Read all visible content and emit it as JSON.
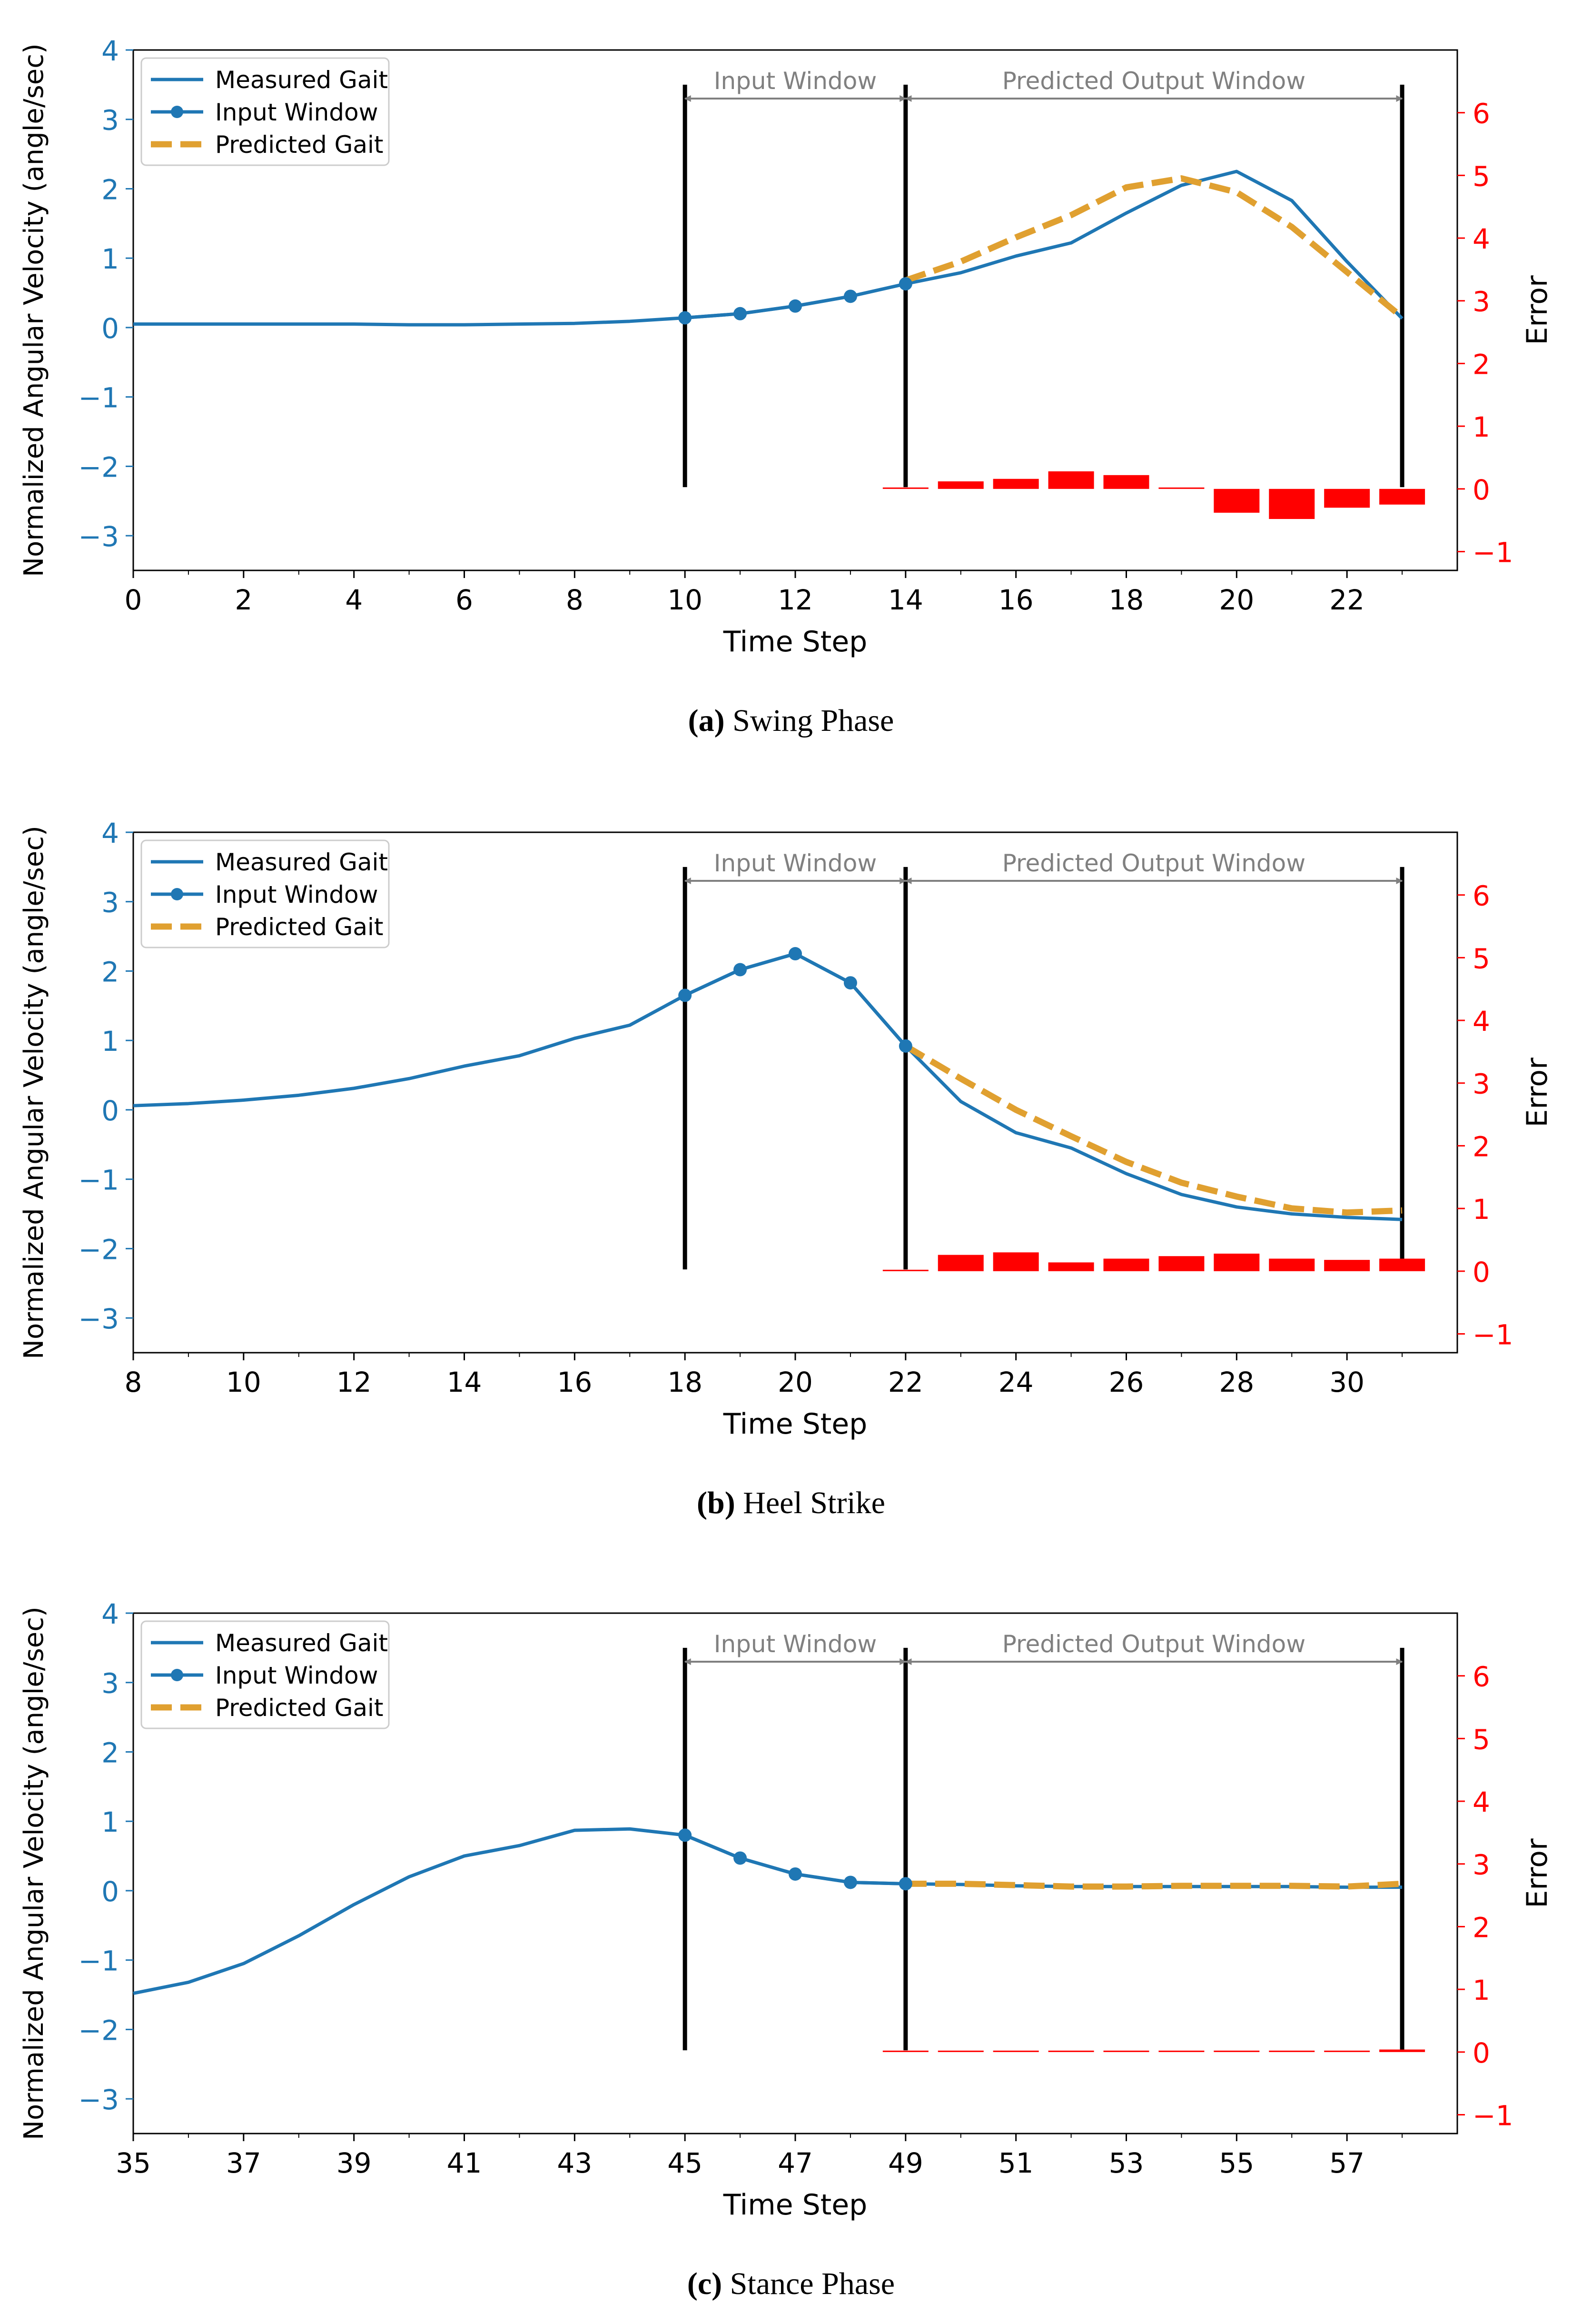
{
  "chart_data": [
    {
      "type": "line",
      "panel_label": "(a)",
      "caption": "Swing Phase",
      "xlabel": "Time Step",
      "ylabel": "Normalized Angular Velocity (angle/sec)",
      "y2label": "Error",
      "xlim": [
        0,
        24
      ],
      "ylim": [
        -3.5,
        4
      ],
      "y2lim": [
        -1.3,
        7
      ],
      "xticks": [
        "0",
        "2",
        "4",
        "6",
        "8",
        "10",
        "12",
        "14",
        "16",
        "18",
        "20",
        "22"
      ],
      "yticks": [
        "−3",
        "−2",
        "−1",
        "0",
        "1",
        "2",
        "3",
        "4"
      ],
      "y2ticks": [
        "−1",
        "0",
        "1",
        "2",
        "3",
        "4",
        "5",
        "6"
      ],
      "legend": {
        "placement": "top-left",
        "entries": [
          "Measured Gait",
          "Input Window",
          "Predicted Gait"
        ]
      },
      "series": [
        {
          "name": "Measured Gait",
          "color": "#1f77b4",
          "x": [
            0,
            1,
            2,
            3,
            4,
            5,
            6,
            7,
            8,
            9,
            10,
            11,
            12,
            13,
            14,
            15,
            16,
            17,
            18,
            19,
            20,
            21,
            22,
            23
          ],
          "y": [
            0.05,
            0.05,
            0.05,
            0.05,
            0.05,
            0.04,
            0.04,
            0.05,
            0.06,
            0.09,
            0.14,
            0.2,
            0.31,
            0.45,
            0.63,
            0.79,
            1.03,
            1.22,
            1.65,
            2.05,
            2.25,
            1.83,
            0.95,
            0.13
          ]
        },
        {
          "name": "Input Window",
          "color": "#1f77b4",
          "x": [
            10,
            11,
            12,
            13,
            14
          ],
          "y": [
            0.14,
            0.2,
            0.31,
            0.45,
            0.63
          ]
        },
        {
          "name": "Predicted Gait",
          "color": "#e0a030",
          "x": [
            14,
            15,
            16,
            17,
            18,
            19,
            20,
            21,
            22,
            23
          ],
          "y": [
            0.68,
            0.95,
            1.3,
            1.62,
            2.02,
            2.15,
            1.95,
            1.45,
            0.8,
            0.15
          ]
        }
      ],
      "error_bars": {
        "color": "#ff0000",
        "x": [
          14,
          15,
          16,
          17,
          18,
          19,
          20,
          21,
          22,
          23
        ],
        "y": [
          0.0,
          0.12,
          0.16,
          0.28,
          0.22,
          0.02,
          -0.38,
          -0.48,
          -0.3,
          -0.25
        ]
      },
      "windows": {
        "input": {
          "label": "Input Window",
          "start": 10,
          "end": 14
        },
        "output": {
          "label": "Predicted Output Window",
          "start": 14,
          "end": 23
        }
      }
    },
    {
      "type": "line",
      "panel_label": "(b)",
      "caption": "Heel Strike",
      "xlabel": "Time Step",
      "ylabel": "Normalized Angular Velocity (angle/sec)",
      "y2label": "Error",
      "xlim": [
        8,
        32
      ],
      "ylim": [
        -3.5,
        4
      ],
      "y2lim": [
        -1.3,
        7
      ],
      "xticks": [
        "8",
        "10",
        "12",
        "14",
        "16",
        "18",
        "20",
        "22",
        "24",
        "26",
        "28",
        "30"
      ],
      "yticks": [
        "−3",
        "−2",
        "−1",
        "0",
        "1",
        "2",
        "3",
        "4"
      ],
      "y2ticks": [
        "−1",
        "0",
        "1",
        "2",
        "3",
        "4",
        "5",
        "6"
      ],
      "legend": {
        "placement": "top-left",
        "entries": [
          "Measured Gait",
          "Input Window",
          "Predicted Gait"
        ]
      },
      "series": [
        {
          "name": "Measured Gait",
          "color": "#1f77b4",
          "x": [
            8,
            9,
            10,
            11,
            12,
            13,
            14,
            15,
            16,
            17,
            18,
            19,
            20,
            21,
            22,
            23,
            24,
            25,
            26,
            27,
            28,
            29,
            30,
            31
          ],
          "y": [
            0.06,
            0.09,
            0.14,
            0.21,
            0.31,
            0.45,
            0.63,
            0.78,
            1.03,
            1.22,
            1.65,
            2.02,
            2.25,
            1.83,
            0.92,
            0.12,
            -0.33,
            -0.55,
            -0.92,
            -1.22,
            -1.4,
            -1.5,
            -1.55,
            -1.58
          ]
        },
        {
          "name": "Input Window",
          "color": "#1f77b4",
          "x": [
            18,
            19,
            20,
            21,
            22
          ],
          "y": [
            1.65,
            2.02,
            2.25,
            1.83,
            0.92
          ]
        },
        {
          "name": "Predicted Gait",
          "color": "#e0a030",
          "x": [
            22,
            23,
            24,
            25,
            26,
            27,
            28,
            29,
            30,
            31
          ],
          "y": [
            0.92,
            0.45,
            0.0,
            -0.38,
            -0.75,
            -1.05,
            -1.25,
            -1.42,
            -1.48,
            -1.45
          ]
        }
      ],
      "error_bars": {
        "color": "#ff0000",
        "x": [
          22,
          23,
          24,
          25,
          26,
          27,
          28,
          29,
          30,
          31
        ],
        "y": [
          0.0,
          0.26,
          0.3,
          0.14,
          0.2,
          0.24,
          0.28,
          0.2,
          0.18,
          0.2
        ]
      },
      "windows": {
        "input": {
          "label": "Input Window",
          "start": 18,
          "end": 22
        },
        "output": {
          "label": "Predicted Output Window",
          "start": 22,
          "end": 31
        }
      }
    },
    {
      "type": "line",
      "panel_label": "(c)",
      "caption": "Stance Phase",
      "xlabel": "Time Step",
      "ylabel": "Normalized Angular Velocity (angle/sec)",
      "y2label": "Error",
      "xlim": [
        35,
        59
      ],
      "ylim": [
        -3.5,
        4
      ],
      "y2lim": [
        -1.3,
        7
      ],
      "xticks": [
        "35",
        "37",
        "39",
        "41",
        "43",
        "45",
        "47",
        "49",
        "51",
        "53",
        "55",
        "57"
      ],
      "yticks": [
        "−3",
        "−2",
        "−1",
        "0",
        "1",
        "2",
        "3",
        "4"
      ],
      "y2ticks": [
        "−1",
        "0",
        "1",
        "2",
        "3",
        "4",
        "5",
        "6"
      ],
      "legend": {
        "placement": "top-left",
        "entries": [
          "Measured Gait",
          "Input Window",
          "Predicted Gait"
        ]
      },
      "series": [
        {
          "name": "Measured Gait",
          "color": "#1f77b4",
          "x": [
            35,
            36,
            37,
            38,
            39,
            40,
            41,
            42,
            43,
            44,
            45,
            46,
            47,
            48,
            49,
            50,
            51,
            52,
            53,
            54,
            55,
            56,
            57,
            58
          ],
          "y": [
            -1.48,
            -1.32,
            -1.05,
            -0.65,
            -0.2,
            0.2,
            0.5,
            0.65,
            0.87,
            0.89,
            0.8,
            0.47,
            0.24,
            0.12,
            0.1,
            0.09,
            0.07,
            0.06,
            0.06,
            0.06,
            0.06,
            0.06,
            0.05,
            0.05
          ]
        },
        {
          "name": "Input Window",
          "color": "#1f77b4",
          "x": [
            45,
            46,
            47,
            48,
            49
          ],
          "y": [
            0.8,
            0.47,
            0.24,
            0.12,
            0.1
          ]
        },
        {
          "name": "Predicted Gait",
          "color": "#e0a030",
          "x": [
            49,
            50,
            51,
            52,
            53,
            54,
            55,
            56,
            57,
            58
          ],
          "y": [
            0.1,
            0.1,
            0.08,
            0.06,
            0.06,
            0.07,
            0.07,
            0.07,
            0.06,
            0.1
          ]
        }
      ],
      "error_bars": {
        "color": "#ff0000",
        "x": [
          49,
          50,
          51,
          52,
          53,
          54,
          55,
          56,
          57,
          58
        ],
        "y": [
          0.0,
          0.015,
          0.01,
          0.01,
          0.015,
          0.01,
          0.01,
          0.01,
          0.015,
          0.04
        ]
      },
      "windows": {
        "input": {
          "label": "Input Window",
          "start": 45,
          "end": 49
        },
        "output": {
          "label": "Predicted Output Window",
          "start": 49,
          "end": 58
        }
      }
    }
  ]
}
